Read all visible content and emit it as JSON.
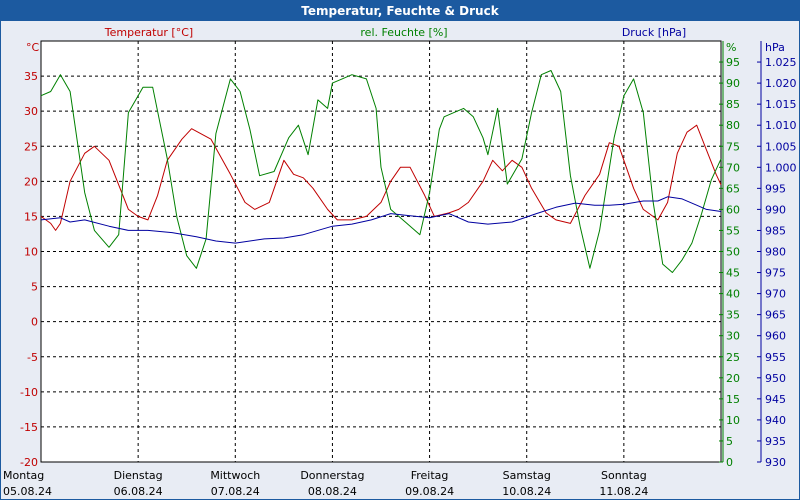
{
  "window": {
    "title": "Temperatur, Feuchte & Druck"
  },
  "colors": {
    "temperature": "#c00000",
    "humidity": "#008000",
    "pressure": "#0000a0",
    "background": "#e8ecf4",
    "title_bar": "#1c5aa0",
    "grid": "#000000"
  },
  "chart_data": {
    "type": "line",
    "title": "Temperatur, Feuchte & Druck",
    "x_start": "05.08.24",
    "x_end": "12.08.24",
    "x_range_days": [
      0,
      7
    ],
    "x_ticks": [
      {
        "day": "Montag",
        "date": "05.08.24"
      },
      {
        "day": "Dienstag",
        "date": "06.08.24"
      },
      {
        "day": "Mittwoch",
        "date": "07.08.24"
      },
      {
        "day": "Donnerstag",
        "date": "08.08.24"
      },
      {
        "day": "Freitag",
        "date": "09.08.24"
      },
      {
        "day": "Samstag",
        "date": "10.08.24"
      },
      {
        "day": "Sonntag",
        "date": "11.08.24"
      }
    ],
    "grid": true,
    "axes": {
      "temperature": {
        "label": "Temperatur [°C]",
        "unit": "°C",
        "range": [
          -20,
          40
        ],
        "ticks": [
          "-20",
          "-15",
          "-10",
          "-5",
          "0",
          "5",
          "10",
          "15",
          "20",
          "25",
          "30",
          "35"
        ],
        "side": "left"
      },
      "humidity": {
        "label": "rel. Feuchte [%]",
        "unit": "%",
        "range": [
          0,
          100
        ],
        "ticks": [
          "0",
          "5",
          "10",
          "15",
          "20",
          "25",
          "30",
          "35",
          "40",
          "45",
          "50",
          "55",
          "60",
          "65",
          "70",
          "75",
          "80",
          "85",
          "90",
          "95"
        ],
        "side": "right"
      },
      "pressure": {
        "label": "Druck [hPa]",
        "unit": "hPa",
        "range": [
          930,
          1030
        ],
        "ticks": [
          "930",
          "935",
          "940",
          "945",
          "950",
          "955",
          "960",
          "965",
          "970",
          "975",
          "980",
          "985",
          "990",
          "995",
          "1.000",
          "1.005",
          "1.010",
          "1.015",
          "1.020",
          "1.025"
        ],
        "side": "right"
      }
    },
    "series": [
      {
        "name": "Temperatur [°C]",
        "axis": "temperature",
        "x": [
          0,
          0.1,
          0.15,
          0.2,
          0.3,
          0.45,
          0.55,
          0.7,
          0.9,
          1.0,
          1.1,
          1.2,
          1.3,
          1.45,
          1.55,
          1.75,
          1.95,
          2.1,
          2.2,
          2.35,
          2.5,
          2.6,
          2.7,
          2.8,
          2.95,
          3.05,
          3.2,
          3.35,
          3.5,
          3.6,
          3.7,
          3.8,
          3.95,
          4.05,
          4.2,
          4.3,
          4.4,
          4.55,
          4.65,
          4.75,
          4.85,
          4.95,
          5.05,
          5.2,
          5.3,
          5.45,
          5.6,
          5.75,
          5.85,
          5.95,
          6.1,
          6.2,
          6.35,
          6.45,
          6.55,
          6.65,
          6.75,
          6.85,
          6.95,
          7.0
        ],
        "values": [
          15,
          14,
          13,
          14,
          20,
          24,
          25,
          23,
          16,
          15,
          14.5,
          18,
          23,
          26,
          27.5,
          26,
          21,
          17,
          16,
          17,
          23,
          21,
          20.5,
          19,
          16,
          14.5,
          14.5,
          15,
          17,
          20,
          22,
          22,
          18,
          15,
          15.5,
          16,
          17,
          20,
          23,
          21.5,
          23,
          22,
          19,
          15.5,
          14.5,
          14,
          18,
          21,
          25.5,
          25,
          19,
          16,
          14.5,
          17,
          24,
          27,
          28,
          24.5,
          21,
          19.5
        ]
      },
      {
        "name": "rel. Feuchte [%]",
        "axis": "humidity",
        "x": [
          0,
          0.1,
          0.2,
          0.3,
          0.45,
          0.55,
          0.7,
          0.8,
          0.9,
          1.05,
          1.15,
          1.3,
          1.4,
          1.5,
          1.6,
          1.7,
          1.8,
          1.95,
          2.05,
          2.15,
          2.25,
          2.4,
          2.55,
          2.65,
          2.75,
          2.85,
          2.95,
          3.0,
          3.1,
          3.2,
          3.35,
          3.45,
          3.5,
          3.6,
          3.75,
          3.9,
          4.0,
          4.1,
          4.15,
          4.25,
          4.35,
          4.45,
          4.55,
          4.6,
          4.7,
          4.8,
          4.95,
          5.05,
          5.15,
          5.25,
          5.35,
          5.45,
          5.55,
          5.65,
          5.75,
          5.9,
          6.0,
          6.1,
          6.2,
          6.3,
          6.4,
          6.5,
          6.6,
          6.7,
          6.8,
          6.9,
          7.0
        ],
        "values": [
          87,
          88,
          92,
          88,
          64,
          55,
          51,
          54,
          83,
          89,
          89,
          72,
          58,
          49,
          46,
          53,
          78,
          91,
          88,
          79,
          68,
          69,
          77,
          80,
          73,
          86,
          84,
          90,
          91,
          92,
          91,
          84,
          70,
          60,
          57,
          54,
          64,
          79,
          82,
          83,
          84,
          82,
          77,
          73,
          84,
          66,
          72,
          83,
          92,
          93,
          88,
          68,
          56,
          46,
          55,
          77,
          87,
          91,
          83,
          62,
          47,
          45,
          48,
          52,
          59,
          67,
          72
        ]
      },
      {
        "name": "Druck [hPa]",
        "axis": "pressure",
        "x": [
          0,
          0.2,
          0.3,
          0.45,
          0.7,
          0.9,
          1.1,
          1.35,
          1.6,
          1.8,
          2.0,
          2.3,
          2.5,
          2.7,
          3.0,
          3.2,
          3.4,
          3.6,
          3.8,
          4.0,
          4.2,
          4.4,
          4.6,
          4.85,
          5.1,
          5.3,
          5.5,
          5.7,
          5.85,
          6.0,
          6.2,
          6.35,
          6.45,
          6.6,
          6.75,
          6.85,
          7.0
        ],
        "values": [
          987.5,
          988,
          987,
          987.5,
          986,
          985,
          985,
          984.5,
          983.5,
          982.5,
          982,
          983,
          983.2,
          984,
          986,
          986.5,
          987.5,
          989,
          988.5,
          988,
          989,
          987,
          986.5,
          987,
          989,
          990.5,
          991.5,
          991,
          991,
          991.2,
          992,
          992,
          993,
          992.5,
          991,
          990,
          989.5
        ]
      }
    ]
  }
}
